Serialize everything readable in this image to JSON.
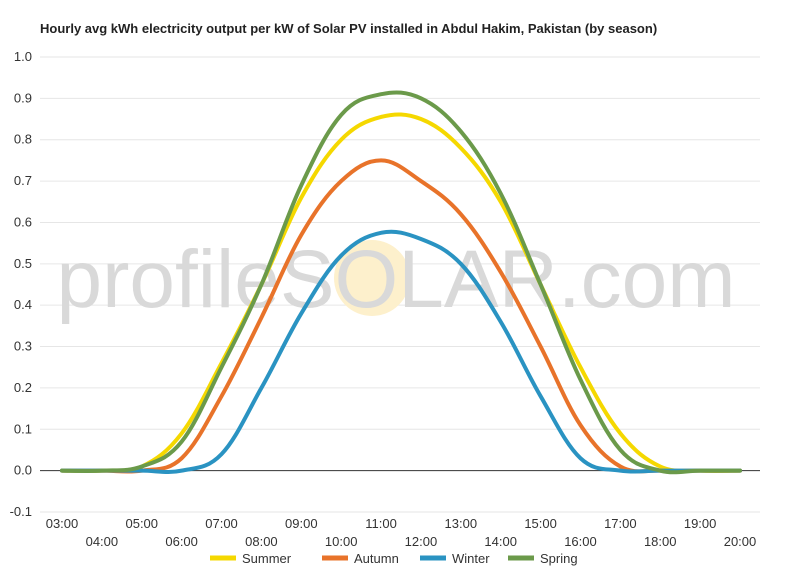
{
  "chart_data": {
    "type": "line",
    "title": "Hourly avg kWh electricity output per kW of Solar PV installed in Abdul Hakim, Pakistan (by season)",
    "xlabel": "",
    "ylabel": "",
    "ylim": [
      -0.1,
      1.0
    ],
    "yticks": [
      "-0.1",
      "0.0",
      "0.1",
      "0.2",
      "0.3",
      "0.4",
      "0.5",
      "0.6",
      "0.7",
      "0.8",
      "0.9",
      "1.0"
    ],
    "categories": [
      "03:00",
      "04:00",
      "05:00",
      "06:00",
      "07:00",
      "08:00",
      "09:00",
      "10:00",
      "11:00",
      "12:00",
      "13:00",
      "14:00",
      "15:00",
      "16:00",
      "17:00",
      "18:00",
      "19:00",
      "20:00"
    ],
    "grid": true,
    "legend_position": "bottom",
    "series": [
      {
        "name": "Summer",
        "color": "#f5d800",
        "values": [
          0,
          0,
          0.01,
          0.09,
          0.26,
          0.45,
          0.66,
          0.8,
          0.855,
          0.85,
          0.78,
          0.65,
          0.45,
          0.25,
          0.09,
          0.01,
          0,
          0
        ]
      },
      {
        "name": "Autumn",
        "color": "#e8732a",
        "values": [
          0,
          0,
          0,
          0.03,
          0.18,
          0.37,
          0.57,
          0.7,
          0.75,
          0.7,
          0.62,
          0.48,
          0.3,
          0.11,
          0.01,
          0,
          0,
          0
        ]
      },
      {
        "name": "Winter",
        "color": "#2a93c2",
        "values": [
          0,
          0,
          0,
          0,
          0.04,
          0.2,
          0.38,
          0.52,
          0.575,
          0.56,
          0.5,
          0.36,
          0.18,
          0.03,
          0,
          0,
          0,
          0
        ]
      },
      {
        "name": "Spring",
        "color": "#6b9a4a",
        "values": [
          0,
          0,
          0.01,
          0.07,
          0.25,
          0.45,
          0.69,
          0.86,
          0.91,
          0.9,
          0.82,
          0.67,
          0.45,
          0.22,
          0.05,
          0,
          0,
          0
        ]
      }
    ]
  },
  "watermark": "profileSOLAR.com"
}
